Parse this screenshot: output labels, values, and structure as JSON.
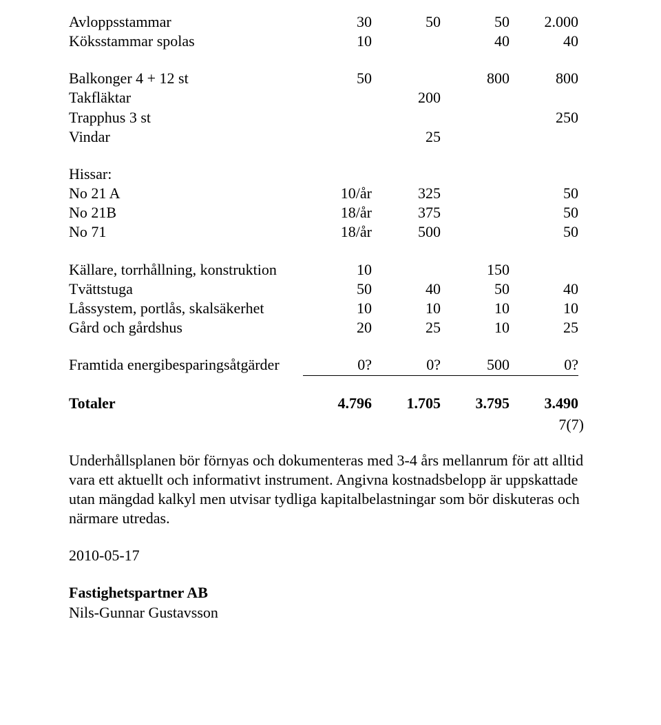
{
  "rows_top": [
    {
      "label": "Avloppsstammar",
      "c1": "30",
      "c2": "50",
      "c3": "50",
      "c4": "2.000"
    },
    {
      "label": "Köksstammar spolas",
      "c1": "10",
      "c2": "",
      "c3": "40",
      "c4": "40"
    }
  ],
  "rows_balk": [
    {
      "label": "Balkonger 4 + 12 st",
      "c1": "50",
      "c2": "",
      "c3": "800",
      "c4": "800"
    },
    {
      "label": "Takfläktar",
      "c1": "",
      "c2": "200",
      "c3": "",
      "c4": ""
    },
    {
      "label": "Trapphus  3 st",
      "c1": "",
      "c2": "",
      "c3": "",
      "c4": "250"
    },
    {
      "label": "Vindar",
      "c1": "",
      "c2": "25",
      "c3": "",
      "c4": ""
    }
  ],
  "hissar_heading": "Hissar:",
  "rows_hissar": [
    {
      "label": "No 21 A",
      "c1": "10/år",
      "c2": "325",
      "c3": "",
      "c4": "50"
    },
    {
      "label": "No 21B",
      "c1": "18/år",
      "c2": "375",
      "c3": "",
      "c4": "50"
    },
    {
      "label": "No 71",
      "c1": "18/år",
      "c2": "500",
      "c3": "",
      "c4": "50"
    }
  ],
  "rows_kallare": [
    {
      "label": "Källare, torrhållning, konstruktion",
      "c1": "10",
      "c2": "",
      "c3": "150",
      "c4": ""
    },
    {
      "label": "Tvättstuga",
      "c1": "50",
      "c2": "40",
      "c3": "50",
      "c4": "40"
    },
    {
      "label": "Låssystem, portlås, skalsäkerhet",
      "c1": "10",
      "c2": "10",
      "c3": "10",
      "c4": "10"
    },
    {
      "label": "Gård och gårdshus",
      "c1": "20",
      "c2": "25",
      "c3": "10",
      "c4": "25"
    }
  ],
  "energi_row": {
    "label": "Framtida energibesparingsåtgärder",
    "c1": "0?",
    "c2": "0?",
    "c3": "500",
    "c4": "0?"
  },
  "totals_row": {
    "label": "Totaler",
    "c1": "4.796",
    "c2": "1.705",
    "c3": "3.795",
    "c4": "3.490"
  },
  "page_number": "7(7)",
  "paragraph": "Underhållsplanen bör förnyas och dokumenteras med 3-4 års mellanrum för att alltid vara ett aktuellt och informativt instrument. Angivna kostnadsbelopp är uppskattade utan mängdad kalkyl men utvisar tydliga kapitalbelastningar som  bör diskuteras och närmare utredas.",
  "date": "2010-05-17",
  "company": "Fastighetspartner AB",
  "author": "Nils-Gunnar Gustavsson"
}
